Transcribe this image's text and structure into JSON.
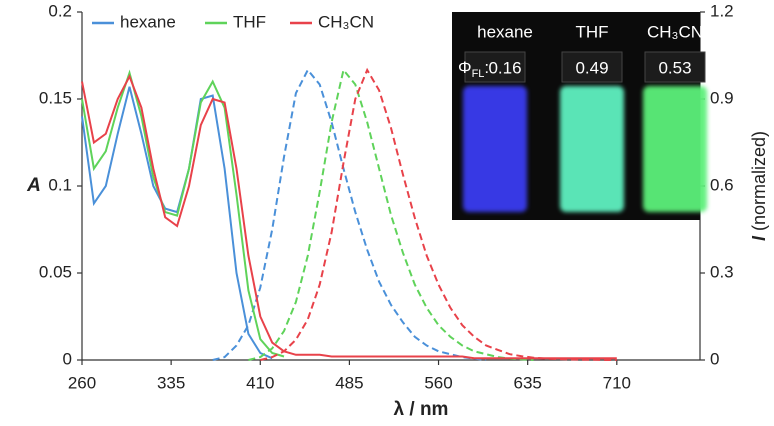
{
  "chart_data": {
    "type": "line",
    "xlabel": "λ / nm",
    "ylabel": "A",
    "y2label_symbol": "I",
    "y2label": "(normalized)",
    "x": [
      260,
      270,
      280,
      290,
      300,
      310,
      320,
      330,
      340,
      350,
      360,
      370,
      380,
      390,
      400,
      410,
      420,
      430,
      440,
      450,
      460,
      470,
      480,
      490,
      500,
      510,
      520,
      530,
      540,
      550,
      560,
      570,
      580,
      590,
      600,
      610,
      620,
      630,
      640,
      650,
      660,
      670,
      680,
      690,
      700,
      710
    ],
    "xlim": [
      260,
      780
    ],
    "xticks": [
      260,
      335,
      410,
      485,
      560,
      635,
      710
    ],
    "ylim": [
      0,
      0.2
    ],
    "yticks": [
      0,
      0.05,
      0.1,
      0.15,
      0.2
    ],
    "y2lim": [
      0,
      1.2
    ],
    "y2ticks": [
      0,
      0.3,
      0.6,
      0.9,
      1.2
    ],
    "legend": "top-left",
    "series": [
      {
        "name": "hexane",
        "color": "#4a90d9",
        "values": [
          0.14,
          0.09,
          0.1,
          0.13,
          0.157,
          0.13,
          0.1,
          0.087,
          0.085,
          0.11,
          0.15,
          0.152,
          0.11,
          0.05,
          0.015,
          0.004,
          0.001,
          null,
          null,
          null,
          null,
          null,
          null,
          null,
          null,
          null,
          null,
          null,
          null,
          null,
          null,
          null,
          null,
          null,
          null,
          null,
          null,
          null,
          null,
          null,
          null,
          null,
          null,
          null,
          null,
          null
        ],
        "emission": [
          null,
          null,
          null,
          null,
          null,
          null,
          null,
          null,
          null,
          null,
          null,
          0,
          0.01,
          0.05,
          0.12,
          0.25,
          0.45,
          0.7,
          0.92,
          1,
          0.95,
          0.82,
          0.66,
          0.51,
          0.38,
          0.27,
          0.19,
          0.13,
          0.08,
          0.05,
          0.03,
          0.02,
          0.01,
          0.005,
          0,
          null,
          null,
          null,
          null,
          null,
          null,
          null,
          null,
          null,
          null,
          null
        ]
      },
      {
        "name": "THF",
        "color": "#5fd35a",
        "values": [
          0.15,
          0.11,
          0.12,
          0.145,
          0.165,
          0.14,
          0.105,
          0.085,
          0.083,
          0.11,
          0.148,
          0.16,
          0.145,
          0.095,
          0.04,
          0.012,
          0.004,
          0.002,
          null,
          null,
          null,
          null,
          null,
          null,
          null,
          null,
          null,
          null,
          null,
          null,
          null,
          null,
          null,
          null,
          null,
          null,
          null,
          null,
          null,
          null,
          null,
          null,
          null,
          null,
          null,
          null
        ],
        "emission": [
          null,
          null,
          null,
          null,
          null,
          null,
          null,
          null,
          null,
          null,
          null,
          null,
          null,
          null,
          0,
          0.01,
          0.04,
          0.1,
          0.2,
          0.36,
          0.58,
          0.82,
          1,
          0.95,
          0.82,
          0.66,
          0.5,
          0.37,
          0.26,
          0.18,
          0.12,
          0.08,
          0.05,
          0.03,
          0.02,
          0.01,
          0.005,
          0.002,
          0,
          null,
          null,
          null,
          null,
          null,
          null,
          null
        ]
      },
      {
        "name": "CH₃CN",
        "color": "#e8424a",
        "values": [
          0.16,
          0.125,
          0.13,
          0.15,
          0.163,
          0.145,
          0.11,
          0.082,
          0.077,
          0.1,
          0.135,
          0.15,
          0.148,
          0.11,
          0.06,
          0.025,
          0.01,
          0.005,
          0.003,
          0.003,
          0.003,
          0.002,
          0.002,
          0.002,
          0.002,
          0.002,
          0.002,
          0.002,
          0.002,
          0.002,
          0.002,
          0.002,
          0.002,
          0.001,
          0.001,
          0.001,
          0.001,
          0.001,
          0.001,
          0.001,
          0.001,
          0.001,
          0.001,
          0.001,
          0.001,
          0.001
        ],
        "emission": [
          null,
          null,
          null,
          null,
          null,
          null,
          null,
          null,
          null,
          null,
          null,
          null,
          null,
          null,
          null,
          0,
          0.01,
          0.03,
          0.07,
          0.14,
          0.26,
          0.44,
          0.68,
          0.9,
          1,
          0.93,
          0.8,
          0.64,
          0.49,
          0.36,
          0.26,
          0.18,
          0.12,
          0.08,
          0.05,
          0.035,
          0.02,
          0.013,
          0.008,
          0.005,
          0.003,
          0.002,
          0.001,
          0.001,
          0,
          0
        ]
      }
    ],
    "inset": {
      "labels": [
        "hexane",
        "THF",
        "CH₃CN"
      ],
      "symbol": "Φ",
      "subscript": "FL",
      "suffix": ":",
      "values": [
        0.16,
        0.49,
        0.53
      ],
      "colors": [
        "#3a3cf0",
        "#5ff0c0",
        "#5cf07a"
      ]
    }
  }
}
